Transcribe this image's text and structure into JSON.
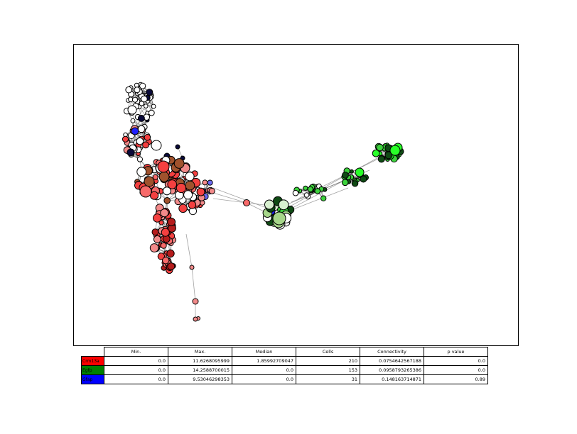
{
  "table": {
    "columns": [
      "Min.",
      "Max.",
      "Median",
      "Cells",
      "Connectivity",
      "p value"
    ],
    "rows": [
      {
        "label": "Crm13a",
        "color": "#ff0000",
        "text_color": "#000000",
        "values": [
          "0.0",
          "11.6268095999",
          "1.85992709047",
          "210",
          "0.0754642567188",
          "0.0"
        ]
      },
      {
        "label": "Egfp",
        "color": "#008000",
        "text_color": "#000000",
        "values": [
          "0.0",
          "14.2588700015",
          "0.0",
          "153",
          "0.0958793265386",
          "0.0"
        ]
      },
      {
        "label": "Gfap",
        "color": "#0000ff",
        "text_color": "#000000",
        "values": [
          "0.0",
          "9.53046298353",
          "0.0",
          "31",
          "0.148163714871",
          "0.89"
        ]
      }
    ]
  },
  "node_colors": {
    "white": "#ffffff",
    "red": "#f44040",
    "light_red": "#f28a8a",
    "salmon": "#f76a6a",
    "dark_red": "#b51c1c",
    "brown": "#a0522d",
    "blue": "#2020ff",
    "purple_blue": "#6a6af0",
    "navy": "#0a0a3a",
    "green": "#3cd23c",
    "bright_green": "#28ff28",
    "pale_green": "#a6d68a",
    "dark_green": "#0f4a14",
    "light_green_white": "#d8f0d0"
  }
}
